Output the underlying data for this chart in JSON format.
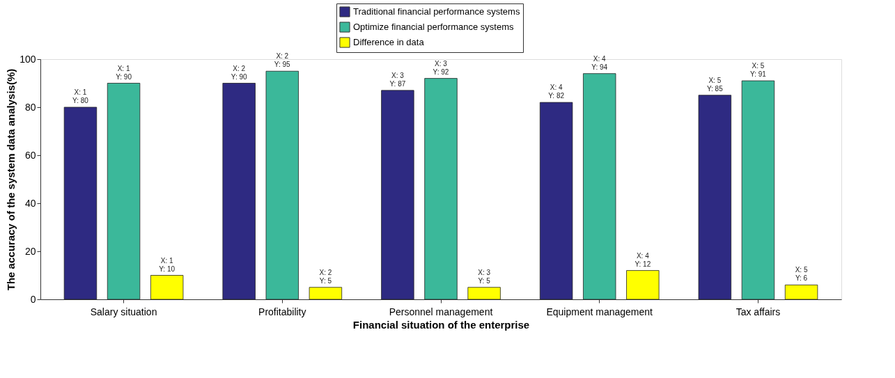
{
  "chart_data": {
    "type": "bar",
    "xlabel": "Financial situation of the enterprise",
    "ylabel": "The accuracy of the system data analysis(%)",
    "categories": [
      "Salary situation",
      "Profitability",
      "Personnel management",
      "Equipment management",
      "Tax affairs"
    ],
    "series": [
      {
        "name": "Traditional financial performance systems",
        "color": "#2e2a82",
        "values": [
          80,
          90,
          87,
          82,
          85
        ],
        "value_labels": [
          "X: 1\nY: 80",
          "X: 2\nY: 90",
          "X: 3\nY: 87",
          "X: 4\nY: 82",
          "X: 5\nY: 85"
        ]
      },
      {
        "name": "Optimize financial performance systems",
        "color": "#3bb89a",
        "values": [
          90,
          95,
          92,
          94,
          91
        ],
        "value_labels": [
          "X: 1\nY: 90",
          "X: 2\nY: 95",
          "X: 3\nY: 92",
          "X: 4\nY: 94",
          "X: 5\nY: 91"
        ]
      },
      {
        "name": "Difference in data",
        "color": "#ffff00",
        "values": [
          10,
          5,
          5,
          12,
          6
        ],
        "value_labels": [
          "X: 1\nY: 10",
          "X: 2\nY: 5",
          "X: 3\nY: 5",
          "X: 4\nY: 12",
          "X: 5\nY: 6"
        ]
      }
    ],
    "ylim": [
      0,
      100
    ],
    "yticks": [
      0,
      20,
      40,
      60,
      80,
      100
    ],
    "grid": false,
    "legend": "top"
  }
}
